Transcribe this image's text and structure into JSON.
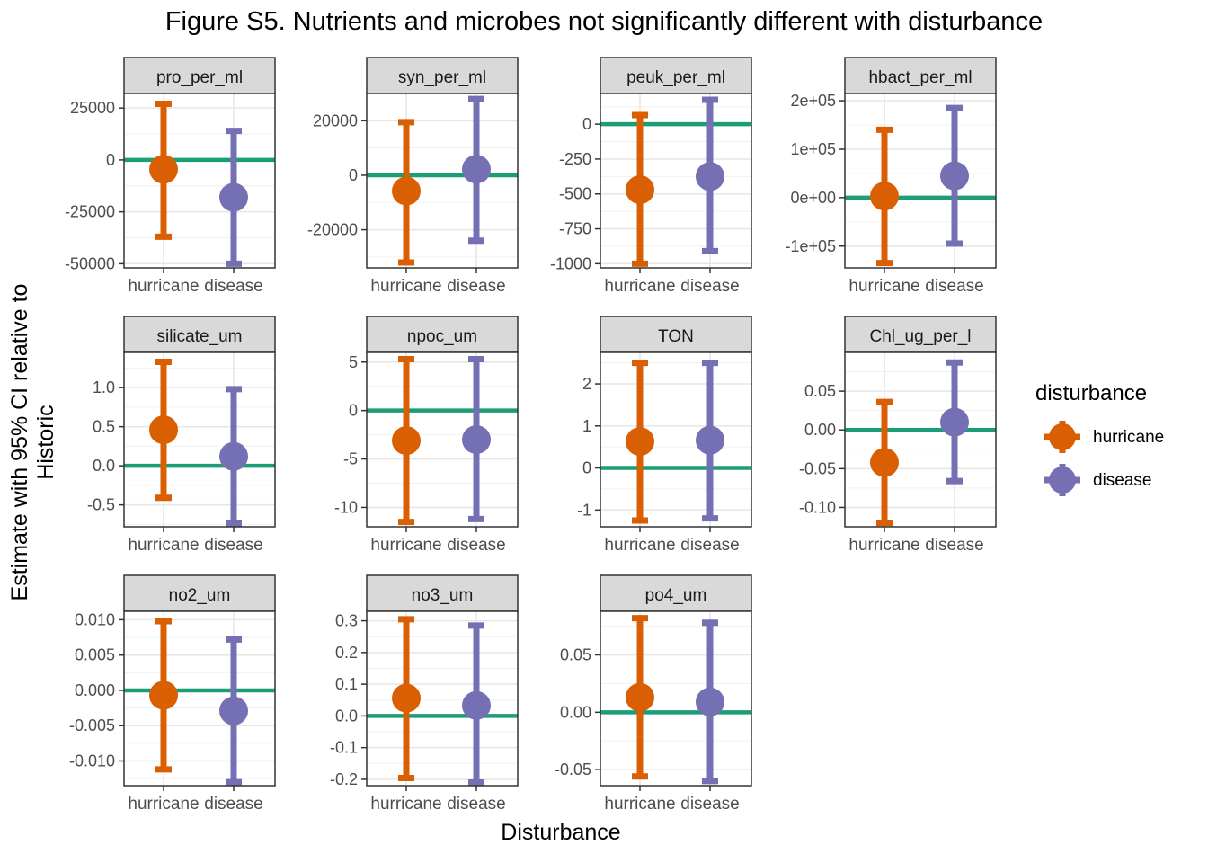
{
  "chart_data": {
    "type": "errorbar",
    "title": "Figure S5. Nutrients and microbes not significantly different with disturbance",
    "xlabel": "Disturbance",
    "ylabel": "Estimate with 95% CI relative to Historic",
    "categories": [
      "hurricane",
      "disease"
    ],
    "legend": {
      "title": "disturbance",
      "placement": "right",
      "entries": [
        {
          "name": "hurricane",
          "color": "#D95F02"
        },
        {
          "name": "disease",
          "color": "#7570B3"
        }
      ]
    },
    "reference_line": {
      "y": 0,
      "color": "#1B9E77"
    },
    "grid": true,
    "panels": [
      {
        "name": "pro_per_ml",
        "ylim": [
          -52000,
          32000
        ],
        "ticks": [
          {
            "v": 25000,
            "label": "25000"
          },
          {
            "v": 0,
            "label": "0"
          },
          {
            "v": -25000,
            "label": "-25000"
          },
          {
            "v": -50000,
            "label": "-50000"
          }
        ],
        "points": [
          {
            "category": "hurricane",
            "estimate": -4500,
            "lower": -37000,
            "upper": 27000
          },
          {
            "category": "disease",
            "estimate": -18000,
            "lower": -50000,
            "upper": 14000
          }
        ]
      },
      {
        "name": "syn_per_ml",
        "ylim": [
          -34000,
          30000
        ],
        "ticks": [
          {
            "v": 20000,
            "label": "20000"
          },
          {
            "v": 0,
            "label": "0"
          },
          {
            "v": -20000,
            "label": "-20000"
          }
        ],
        "points": [
          {
            "category": "hurricane",
            "estimate": -5800,
            "lower": -32000,
            "upper": 19500
          },
          {
            "category": "disease",
            "estimate": 2200,
            "lower": -24000,
            "upper": 28000
          }
        ]
      },
      {
        "name": "peuk_per_ml",
        "ylim": [
          -1030,
          220
        ],
        "ticks": [
          {
            "v": 0,
            "label": "0"
          },
          {
            "v": -250,
            "label": "-250"
          },
          {
            "v": -500,
            "label": "-500"
          },
          {
            "v": -750,
            "label": "-750"
          },
          {
            "v": -1000,
            "label": "-1000"
          }
        ],
        "points": [
          {
            "category": "hurricane",
            "estimate": -470,
            "lower": -1000,
            "upper": 65
          },
          {
            "category": "disease",
            "estimate": -375,
            "lower": -910,
            "upper": 175
          }
        ]
      },
      {
        "name": "hbact_per_ml",
        "ylim": [
          -145000,
          215000
        ],
        "ticks": [
          {
            "v": 200000,
            "label": "2e+05"
          },
          {
            "v": 100000,
            "label": "1e+05"
          },
          {
            "v": 0,
            "label": "0e+00"
          },
          {
            "v": -100000,
            "label": "-1e+05"
          }
        ],
        "points": [
          {
            "category": "hurricane",
            "estimate": 3000,
            "lower": -135000,
            "upper": 140000
          },
          {
            "category": "disease",
            "estimate": 45000,
            "lower": -95000,
            "upper": 185000
          }
        ]
      },
      {
        "name": "silicate_um",
        "ylim": [
          -0.78,
          1.45
        ],
        "ticks": [
          {
            "v": 1.0,
            "label": "1.0"
          },
          {
            "v": 0.5,
            "label": "0.5"
          },
          {
            "v": 0.0,
            "label": "0.0"
          },
          {
            "v": -0.5,
            "label": "-0.5"
          }
        ],
        "points": [
          {
            "category": "hurricane",
            "estimate": 0.46,
            "lower": -0.41,
            "upper": 1.33
          },
          {
            "category": "disease",
            "estimate": 0.12,
            "lower": -0.74,
            "upper": 0.98
          }
        ]
      },
      {
        "name": "npoc_um",
        "ylim": [
          -12.0,
          6.0
        ],
        "ticks": [
          {
            "v": 5,
            "label": "5"
          },
          {
            "v": 0,
            "label": "0"
          },
          {
            "v": -5,
            "label": "-5"
          },
          {
            "v": -10,
            "label": "-10"
          }
        ],
        "points": [
          {
            "category": "hurricane",
            "estimate": -3.1,
            "lower": -11.5,
            "upper": 5.3
          },
          {
            "category": "disease",
            "estimate": -3.0,
            "lower": -11.2,
            "upper": 5.3
          }
        ]
      },
      {
        "name": "TON",
        "ylim": [
          -1.4,
          2.75
        ],
        "ticks": [
          {
            "v": 2,
            "label": "2"
          },
          {
            "v": 1,
            "label": "1"
          },
          {
            "v": 0,
            "label": "0"
          },
          {
            "v": -1,
            "label": "-1"
          }
        ],
        "points": [
          {
            "category": "hurricane",
            "estimate": 0.63,
            "lower": -1.25,
            "upper": 2.5
          },
          {
            "category": "disease",
            "estimate": 0.66,
            "lower": -1.2,
            "upper": 2.5
          }
        ]
      },
      {
        "name": "Chl_ug_per_l",
        "ylim": [
          -0.125,
          0.1
        ],
        "ticks": [
          {
            "v": 0.05,
            "label": "0.05"
          },
          {
            "v": 0.0,
            "label": "0.00"
          },
          {
            "v": -0.05,
            "label": "-0.05"
          },
          {
            "v": -0.1,
            "label": "-0.10"
          }
        ],
        "points": [
          {
            "category": "hurricane",
            "estimate": -0.042,
            "lower": -0.12,
            "upper": 0.036
          },
          {
            "category": "disease",
            "estimate": 0.01,
            "lower": -0.066,
            "upper": 0.087
          }
        ]
      },
      {
        "name": "no2_um",
        "ylim": [
          -0.0135,
          0.0112
        ],
        "ticks": [
          {
            "v": 0.01,
            "label": "0.010"
          },
          {
            "v": 0.005,
            "label": "0.005"
          },
          {
            "v": 0.0,
            "label": "0.000"
          },
          {
            "v": -0.005,
            "label": "-0.005"
          },
          {
            "v": -0.01,
            "label": "-0.010"
          }
        ],
        "points": [
          {
            "category": "hurricane",
            "estimate": -0.0007,
            "lower": -0.0112,
            "upper": 0.0098
          },
          {
            "category": "disease",
            "estimate": -0.0029,
            "lower": -0.013,
            "upper": 0.0072
          }
        ]
      },
      {
        "name": "no3_um",
        "ylim": [
          -0.22,
          0.33
        ],
        "ticks": [
          {
            "v": 0.3,
            "label": "0.3"
          },
          {
            "v": 0.2,
            "label": "0.2"
          },
          {
            "v": 0.1,
            "label": "0.1"
          },
          {
            "v": 0.0,
            "label": "0.0"
          },
          {
            "v": -0.1,
            "label": "-0.1"
          },
          {
            "v": -0.2,
            "label": "-0.2"
          }
        ],
        "points": [
          {
            "category": "hurricane",
            "estimate": 0.056,
            "lower": -0.196,
            "upper": 0.305
          },
          {
            "category": "disease",
            "estimate": 0.033,
            "lower": -0.21,
            "upper": 0.285
          }
        ]
      },
      {
        "name": "po4_um",
        "ylim": [
          -0.064,
          0.088
        ],
        "ticks": [
          {
            "v": 0.05,
            "label": "0.05"
          },
          {
            "v": 0.0,
            "label": "0.00"
          },
          {
            "v": -0.05,
            "label": "-0.05"
          }
        ],
        "points": [
          {
            "category": "hurricane",
            "estimate": 0.013,
            "lower": -0.056,
            "upper": 0.082
          },
          {
            "category": "disease",
            "estimate": 0.009,
            "lower": -0.06,
            "upper": 0.078
          }
        ]
      }
    ]
  }
}
